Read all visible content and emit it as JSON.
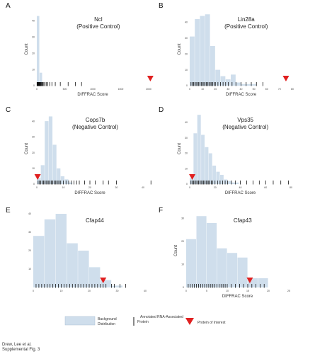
{
  "chart_data": [
    {
      "letter": "A",
      "title": "Ncl",
      "subtitle": "(Positive Control)",
      "type": "bar",
      "xlabel": "DIFFRAC Score",
      "ylabel": "Count",
      "xlim": [
        0,
        2000
      ],
      "ylim": [
        0,
        45
      ],
      "xticks": [
        "0",
        "500",
        "1000",
        "1500",
        "2000"
      ],
      "yticks": [
        "0",
        "10",
        "20",
        "30",
        "40"
      ],
      "bin_edges": [
        0,
        50,
        100,
        150
      ],
      "bin_counts": [
        43,
        8,
        0
      ],
      "rug": [
        4,
        8,
        12,
        16,
        21,
        26,
        31,
        36,
        42,
        48,
        55,
        63,
        72,
        84,
        95,
        108,
        125,
        145,
        168,
        195,
        230,
        270,
        330,
        420,
        560,
        690,
        800
      ],
      "marker": 2030
    },
    {
      "letter": "B",
      "title": "Lin28a",
      "subtitle": "(Positive Control)",
      "type": "bar",
      "xlabel": "DIFFRAC Score",
      "ylabel": "Count",
      "xlim": [
        0,
        80
      ],
      "ylim": [
        0,
        46
      ],
      "xticks": [
        "0",
        "10",
        "20",
        "30",
        "40",
        "50",
        "60",
        "70",
        "80"
      ],
      "yticks": [
        "0",
        "10",
        "20",
        "30",
        "40"
      ],
      "bin_edges": [
        0,
        4,
        8,
        12,
        16,
        20,
        24,
        28,
        32,
        36,
        40,
        44,
        48,
        52
      ],
      "bin_counts": [
        31,
        42,
        44,
        45,
        25,
        10,
        6,
        4,
        7,
        2,
        1,
        1,
        1
      ],
      "rug": [
        1,
        2,
        3,
        4,
        5,
        6,
        7,
        8,
        9,
        10,
        11,
        12,
        13,
        14,
        15,
        16,
        17,
        18,
        19,
        20,
        22,
        24,
        26,
        28,
        30,
        33,
        36,
        40,
        44,
        48,
        52,
        57
      ],
      "marker": 75
    },
    {
      "letter": "C",
      "title": "Cops7b",
      "subtitle": "(Negative Control)",
      "type": "bar",
      "xlabel": "DIFFRAC Score",
      "ylabel": "Count",
      "xlim": [
        0,
        40
      ],
      "ylim": [
        0,
        45
      ],
      "xticks": [
        "0",
        "10",
        "20",
        "30",
        "40"
      ],
      "yticks": [
        "0",
        "10",
        "20",
        "30",
        "40"
      ],
      "bin_edges": [
        0,
        1.5,
        3,
        4.5,
        6,
        7.5,
        9,
        10.5,
        12,
        13.5
      ],
      "bin_counts": [
        4,
        12,
        40,
        43,
        25,
        10,
        5,
        3,
        1
      ],
      "rug": [
        0.5,
        1,
        1.5,
        2,
        2.5,
        3,
        3.5,
        4,
        4.5,
        5,
        5.5,
        6,
        6.5,
        7,
        7.5,
        8,
        8.5,
        9,
        10,
        11,
        12,
        13,
        14,
        15,
        16,
        18,
        20,
        22,
        25,
        27,
        30,
        43
      ],
      "marker": 0.3
    },
    {
      "letter": "D",
      "title": "Vps35",
      "subtitle": "(Negative Control)",
      "type": "bar",
      "xlabel": "DIFFRAC Score",
      "ylabel": "Count",
      "xlim": [
        0,
        80
      ],
      "ylim": [
        0,
        46
      ],
      "xticks": [
        "0",
        "20",
        "40",
        "60",
        "80"
      ],
      "yticks": [
        "0",
        "10",
        "20",
        "30",
        "40"
      ],
      "bin_edges": [
        0,
        3,
        6,
        9,
        12,
        15,
        18,
        21,
        24,
        27,
        30,
        33,
        36,
        39
      ],
      "bin_counts": [
        4,
        33,
        45,
        32,
        24,
        20,
        12,
        8,
        6,
        3,
        2,
        1,
        1
      ],
      "rug": [
        1,
        2,
        3,
        4,
        5,
        6,
        7,
        8,
        9,
        10,
        11,
        12,
        13,
        14,
        15,
        16,
        17,
        18,
        20,
        22,
        24,
        26,
        28,
        30,
        33,
        36,
        40,
        45,
        50,
        55,
        60,
        66,
        72,
        78
      ],
      "marker": 2
    },
    {
      "letter": "E",
      "title": "Cfap44",
      "subtitle": "",
      "type": "bar",
      "xlabel": "",
      "ylabel": "",
      "xlim": [
        0,
        40
      ],
      "ylim": [
        0,
        40
      ],
      "xticks": [
        "0",
        "10",
        "20",
        "30",
        "40"
      ],
      "yticks": [
        "10",
        "20",
        "30",
        "40"
      ],
      "bin_edges": [
        0,
        4,
        8,
        12,
        16,
        20,
        24,
        28,
        32
      ],
      "bin_counts": [
        28,
        37,
        40,
        24,
        20,
        11,
        4,
        1
      ],
      "rug": [
        1,
        2,
        3,
        4,
        5,
        6,
        7,
        8,
        9,
        10,
        11,
        12,
        13,
        14,
        15,
        16,
        17,
        18,
        19,
        20,
        21,
        22,
        23,
        24,
        25,
        26,
        28,
        29,
        31,
        33
      ],
      "marker": 25
    },
    {
      "letter": "F",
      "title": "Cfap43",
      "subtitle": "",
      "type": "bar",
      "xlabel": "DIFFRAC Score",
      "ylabel": "Count",
      "xlim": [
        0,
        25
      ],
      "ylim": [
        0,
        32
      ],
      "xticks": [
        "0",
        "5",
        "10",
        "15",
        "20",
        "25"
      ],
      "yticks": [
        "0",
        "10",
        "20",
        "30"
      ],
      "bin_edges": [
        0,
        2.5,
        5,
        7.5,
        10,
        12.5,
        15,
        17.5,
        20
      ],
      "bin_counts": [
        21,
        31,
        28,
        17,
        15,
        13,
        4,
        4
      ],
      "rug": [
        0.5,
        1,
        1.5,
        2,
        2.5,
        3,
        3.5,
        4,
        4.5,
        5,
        5.5,
        6,
        6.5,
        7,
        7.5,
        8,
        8.5,
        9,
        9.5,
        10,
        11,
        12,
        13,
        14,
        15,
        16,
        17,
        18,
        19
      ],
      "marker": 15.5
    }
  ],
  "legend": {
    "background": "Background Distribution",
    "annotated": "Annotated RNA-Associated Protein",
    "protein": "Protein of Interest"
  },
  "caption": {
    "line1": "Drew, Lee et al.",
    "line2": "Supplemental Fig. 3"
  },
  "colors": {
    "bars": "#cfdeec",
    "rug": "#111111",
    "marker": "#e02020"
  }
}
